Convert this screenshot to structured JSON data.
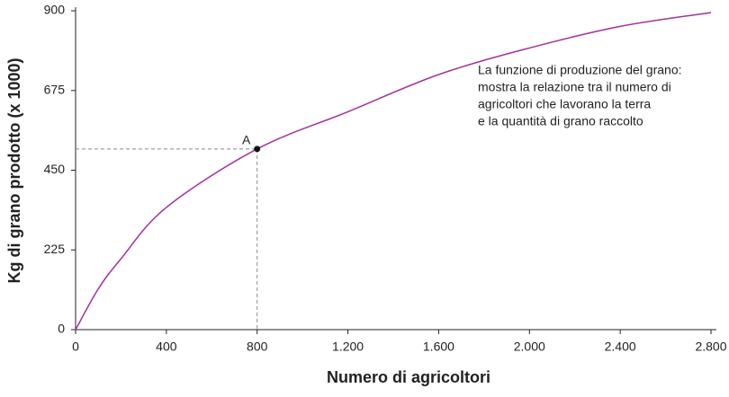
{
  "chart_data": {
    "type": "line",
    "x_label": "Numero di agricoltori",
    "y_label": "Kg di grano prodotto (x 1000)",
    "x": [
      0,
      100,
      200,
      400,
      800,
      1200,
      1600,
      2000,
      2400,
      2800
    ],
    "values": [
      0,
      115,
      200,
      345,
      510,
      615,
      720,
      795,
      856,
      895
    ],
    "color": "#a3309c",
    "xlim": [
      0,
      2800
    ],
    "xticks": [
      0,
      400,
      800,
      {
        "value": 1200,
        "label": "1.200"
      },
      {
        "value": 1600,
        "label": "1.600"
      },
      {
        "value": 2000,
        "label": "2.000"
      },
      {
        "value": 2400,
        "label": "2.400"
      },
      {
        "value": 2800,
        "label": "2.800"
      }
    ],
    "ylim": [
      0,
      900
    ],
    "yticks": [
      0,
      225,
      450,
      675,
      900
    ],
    "point": {
      "label": "A",
      "x": 800,
      "y": 510
    },
    "annotation": [
      "La funzione di produzione del grano:",
      "mostra la relazione tra il numero di",
      "agricoltori che lavorano la terra",
      "e la quantità di grano raccolto"
    ]
  }
}
